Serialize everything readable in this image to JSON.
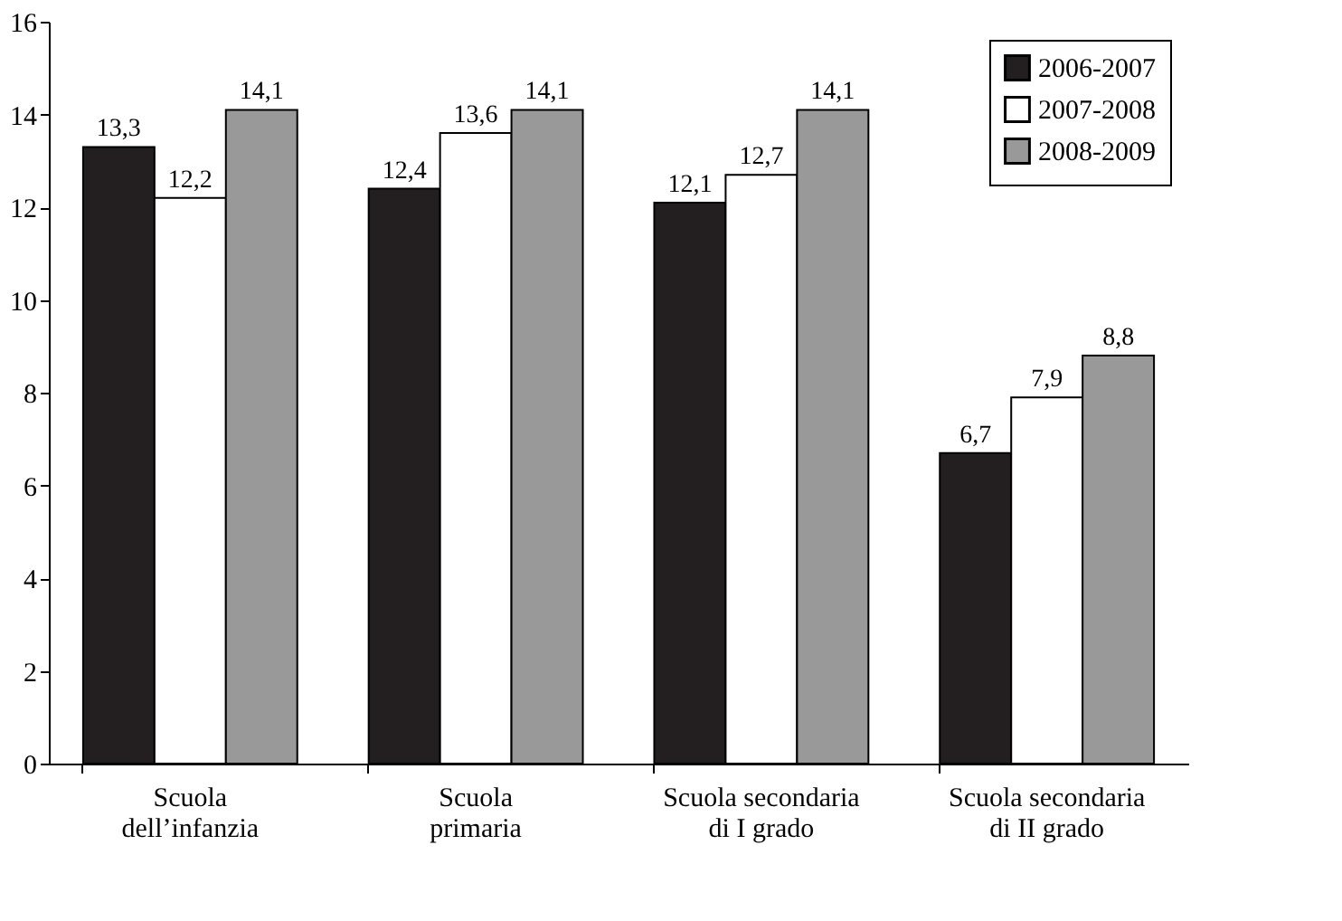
{
  "chart_data": {
    "type": "bar",
    "categories": [
      "Scuola\ndell’infanzia",
      "Scuola\nprimaria",
      "Scuola secondaria\ndi I grado",
      "Scuola secondaria\ndi II grado"
    ],
    "series": [
      {
        "name": "2006-2007",
        "color": "#231f20",
        "values": [
          13.3,
          12.4,
          12.1,
          6.7
        ],
        "value_labels": [
          "13,3",
          "12,4",
          "12,1",
          "6,7"
        ]
      },
      {
        "name": "2007-2008",
        "color": "#ffffff",
        "values": [
          12.2,
          13.6,
          12.7,
          7.9
        ],
        "value_labels": [
          "12,2",
          "13,6",
          "12,7",
          "7,9"
        ]
      },
      {
        "name": "2008-2009",
        "color": "#999999",
        "values": [
          14.1,
          14.1,
          14.1,
          8.8
        ],
        "value_labels": [
          "14,1",
          "14,1",
          "14,1",
          "8,8"
        ]
      }
    ],
    "ylim": [
      0,
      16
    ],
    "yticks": [
      0,
      2,
      4,
      6,
      8,
      10,
      12,
      14,
      16
    ],
    "grid": false,
    "legend": "top right"
  }
}
